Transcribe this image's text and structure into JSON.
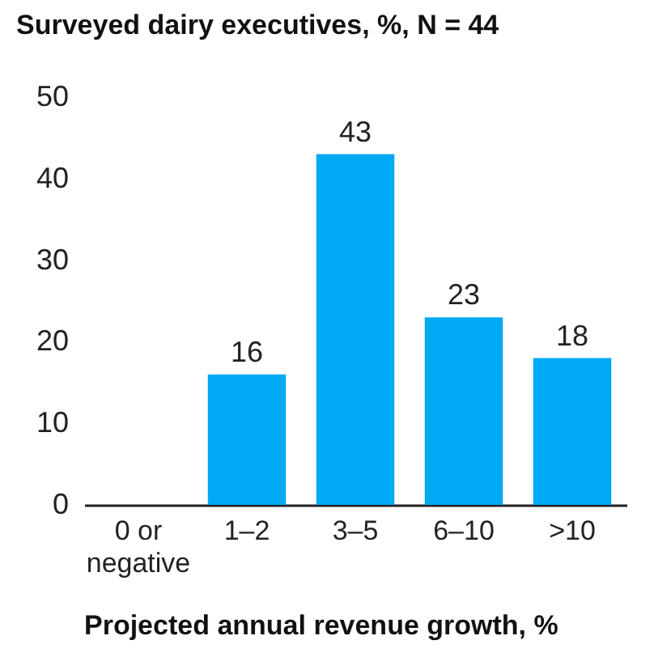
{
  "chart_data": {
    "type": "bar",
    "title": "Surveyed dairy executives, %, N = 44",
    "xlabel": "Projected annual revenue growth, %",
    "categories": [
      "0 or negative",
      "1–2",
      "3–5",
      "6–10",
      ">10"
    ],
    "values": [
      0,
      16,
      43,
      23,
      18
    ],
    "value_labels": [
      null,
      "16",
      "43",
      "23",
      "18"
    ],
    "color": "#00a9f4",
    "ylim": [
      0,
      50
    ],
    "yticks": [
      0,
      10,
      20,
      30,
      40,
      50
    ],
    "grid": false
  }
}
